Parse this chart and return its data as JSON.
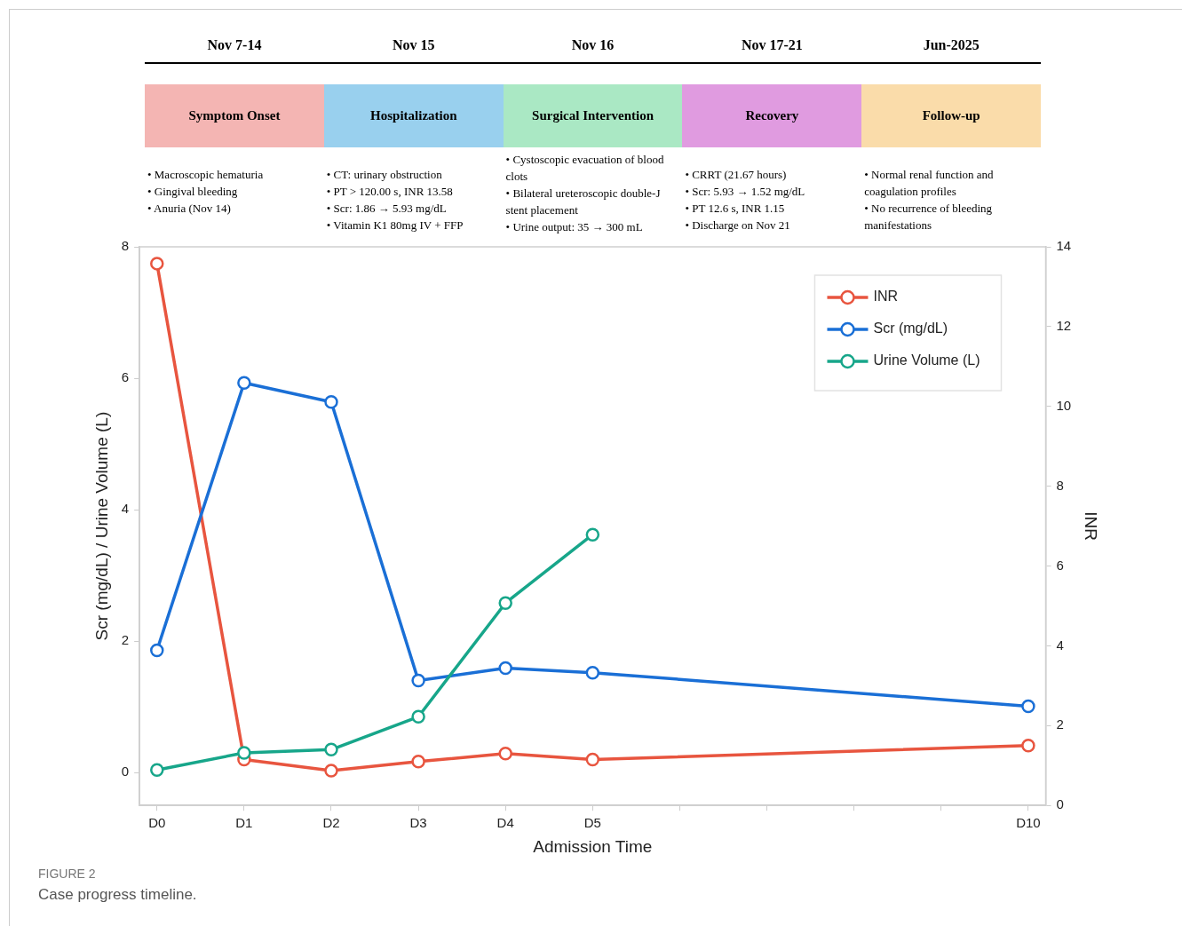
{
  "chart_data": {
    "type": "line",
    "xlabel": "Admission Time",
    "ylabel": "Scr (mg/dL) / Urine Volume (L)",
    "y2label": "INR",
    "categories": [
      "D0",
      "D1",
      "D2",
      "D3",
      "D4",
      "D5",
      null,
      null,
      null,
      null,
      "D10"
    ],
    "ylim": [
      -0.5,
      8
    ],
    "yticks": [
      0,
      2,
      4,
      6,
      8
    ],
    "y2lim": [
      0,
      14
    ],
    "y2ticks": [
      0,
      2,
      4,
      6,
      8,
      10,
      12,
      14
    ],
    "series": [
      {
        "name": "INR",
        "color": "#e8553f",
        "axis": "y2",
        "values": [
          13.58,
          1.15,
          0.87,
          1.1,
          1.3,
          1.15,
          null,
          null,
          null,
          null,
          1.5
        ]
      },
      {
        "name": "Scr (mg/dL)",
        "color": "#1a6fd6",
        "values": [
          1.86,
          5.93,
          5.64,
          1.4,
          1.59,
          1.52,
          null,
          null,
          null,
          null,
          1.01
        ]
      },
      {
        "name": "Urine Volume (L)",
        "color": "#17a68a",
        "values": [
          0.04,
          0.3,
          0.35,
          0.85,
          2.58,
          3.62,
          null,
          null,
          null,
          null,
          null
        ]
      }
    ],
    "marker": "circle",
    "line_style": "solid",
    "grid": false,
    "legend": "top right",
    "annotations": [
      "Nov 7-14",
      "Nov 15",
      "Nov 16",
      "Nov 17-21",
      "Jun-2025",
      "Symptom Onset",
      "Hospitalization",
      "Surgical Intervention",
      "Recovery",
      "Follow-up",
      "• Macroscopic hematuria\n• Gingival bleeding\n• Anuria (Nov 14)",
      "• CT: urinary obstruction\n• PT > 120.00 s, INR 13.58\n• Scr: 1.86 → 5.93 mg/dL\n• Vitamin K1 80mg IV + FFP",
      "• Cystoscopic evacuation of blood clots\n• Bilateral ureteroscopic double-J stent placement\n• Urine output: 35 → 300 mL",
      "• CRRT (21.67 hours)\n• Scr: 5.93 → 1.52 mg/dL\n• PT 12.6 s, INR 1.15\n• Discharge on Nov 21",
      "• Normal renal function and coagulation profiles\n• No recurrence of bleeding manifestations",
      "FIGURE 2",
      "Case progress timeline."
    ]
  }
}
